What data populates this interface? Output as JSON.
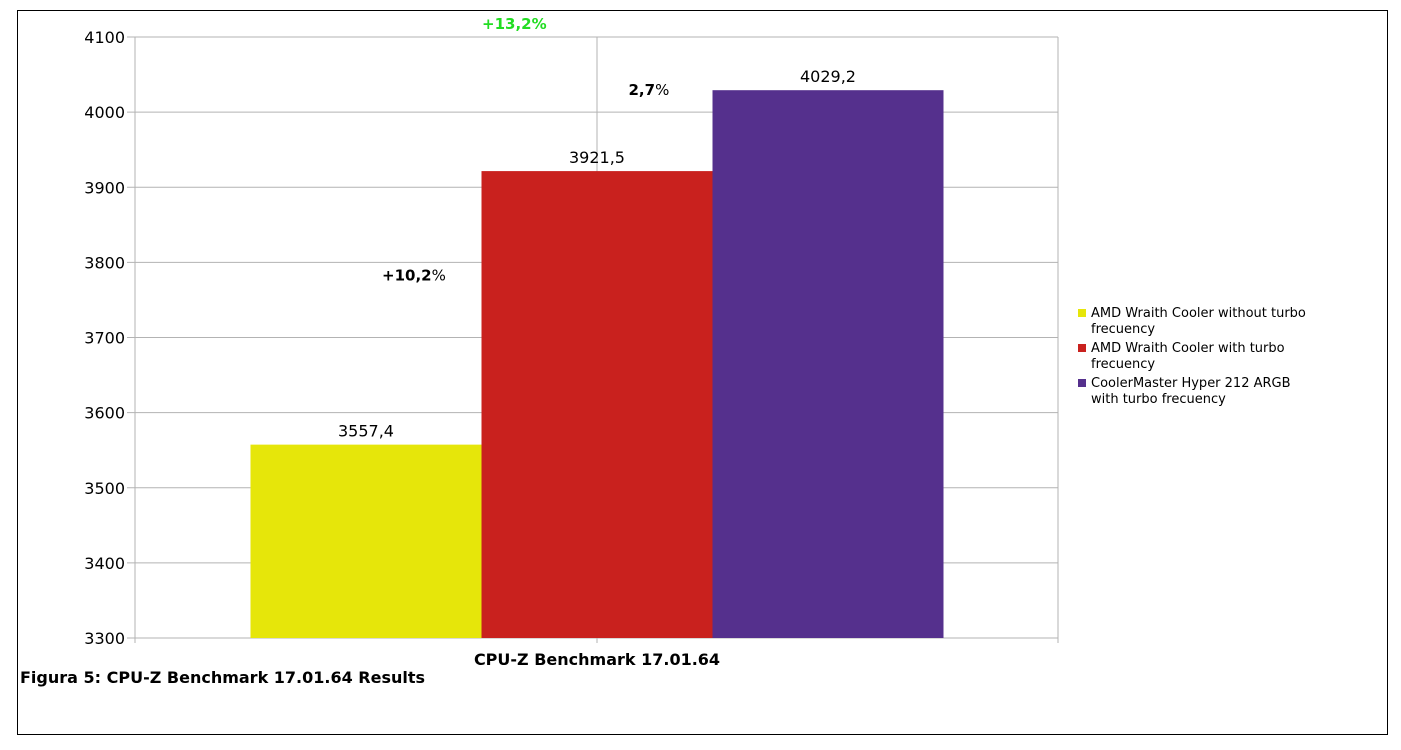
{
  "chart_data": {
    "type": "bar",
    "categories": [
      "CPU-Z Benchmark 17.01.64"
    ],
    "series": [
      {
        "name": "AMD Wraith Cooler without turbo frecuency",
        "values": [
          3557.4
        ],
        "label": "3557,4",
        "color": "#e6e60a"
      },
      {
        "name": "AMD Wraith Cooler with turbo frecuency",
        "values": [
          3921.5
        ],
        "label": "3921,5",
        "color": "#c9211e"
      },
      {
        "name": "CoolerMaster Hyper 212 ARGB with turbo frecuency",
        "values": [
          4029.2
        ],
        "label": "4029,2",
        "color": "#55308d"
      }
    ],
    "ylim": [
      3300,
      4100
    ],
    "yticks": [
      3300,
      3400,
      3500,
      3600,
      3700,
      3800,
      3900,
      4000,
      4100
    ],
    "grid": true,
    "legend_position": "right",
    "annotations": [
      {
        "bold": "+13,2",
        "rest": "%",
        "color": "#22dd22",
        "all_bold": true
      },
      {
        "bold": "2,7",
        "rest": "%",
        "color": "#000000",
        "all_bold": false
      },
      {
        "bold": "+10,2",
        "rest": "%",
        "color": "#000000",
        "all_bold": false
      }
    ]
  },
  "caption": "Figura 5: CPU-Z Benchmark 17.01.64 Results"
}
